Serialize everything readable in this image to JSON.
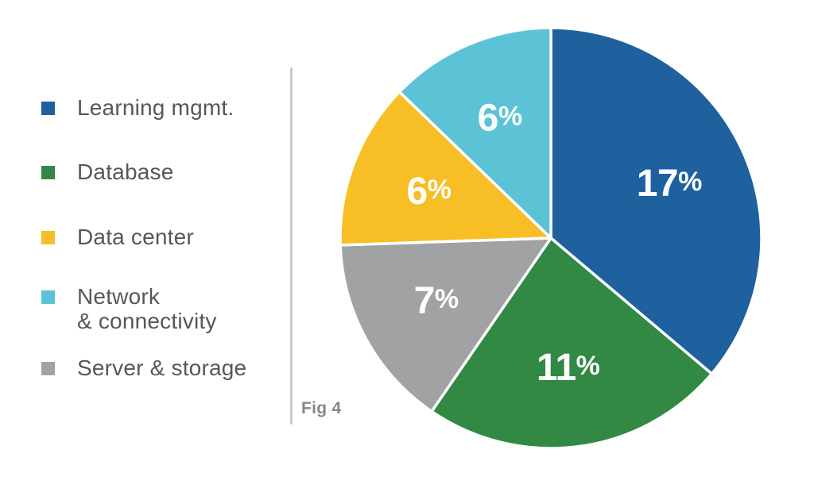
{
  "figure": {
    "caption": "Fig 4",
    "background": "#FFFFFF",
    "divider_color": "#C9CACC",
    "caption_color": "#85878A"
  },
  "legend": {
    "position": "left",
    "text_color": "#56575A",
    "items": [
      {
        "lines": [
          "Learning mgmt."
        ],
        "color": "#1E619E"
      },
      {
        "lines": [
          "Database"
        ],
        "color": "#318944"
      },
      {
        "lines": [
          "Data center"
        ],
        "color": "#F7BE26"
      },
      {
        "lines": [
          "Network",
          "& connectivity"
        ],
        "color": "#5CC3D7"
      },
      {
        "lines": [
          "Server & storage"
        ],
        "color": "#A0A2A4"
      }
    ]
  },
  "chart_data": {
    "type": "pie",
    "title": "",
    "start_angle_deg": 0,
    "direction": "clockwise",
    "value_suffix": "%",
    "label_color": "#FFFFFF",
    "separator_color": "#FFFFFF",
    "legend_position": "left",
    "slices": [
      {
        "label": "Learning mgmt.",
        "value": 17,
        "color": "#1E619E"
      },
      {
        "label": "Database",
        "value": 11,
        "color": "#318944"
      },
      {
        "label": "Server & storage",
        "value": 7,
        "color": "#A0A2A4"
      },
      {
        "label": "Data center",
        "value": 6,
        "color": "#F7BE26"
      },
      {
        "label": "Network & connectivity",
        "value": 6,
        "color": "#5CC3D7"
      }
    ]
  }
}
